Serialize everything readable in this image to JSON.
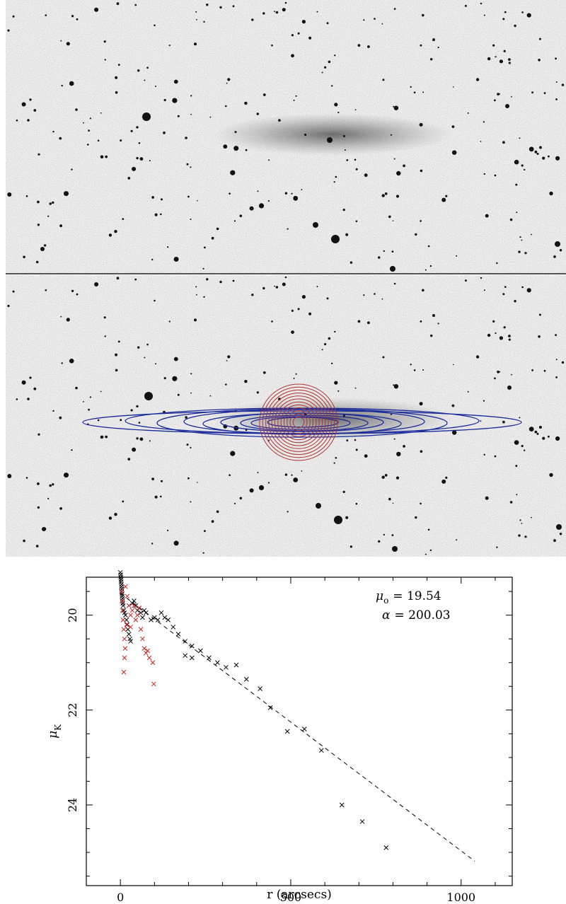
{
  "figure": {
    "panels": [
      "galaxy-image",
      "galaxy-image-with-isophote-ellipses",
      "surface-brightness-profile"
    ]
  },
  "chart_data": {
    "type": "scatter",
    "xlabel": "r (arcsecs)",
    "ylabel_symbol": "μ",
    "ylabel_subscript": "K",
    "xlim": [
      -100,
      1150
    ],
    "ylim": [
      19.2,
      25.7
    ],
    "y_inverted": true,
    "xticks": [
      0,
      500,
      1000
    ],
    "yticks": [
      20,
      22,
      24
    ],
    "grid": false,
    "annotations": {
      "mu0_symbol": "μ",
      "mu0_subscript": "o",
      "mu0_text": "= 19.54",
      "alpha_symbol": "α",
      "alpha_text": "= 200.03"
    },
    "fit": {
      "style": "dashed",
      "mu0": 19.54,
      "alpha": 200.03,
      "x_range": [
        0,
        1040
      ]
    },
    "series": [
      {
        "color": "#000000",
        "marker": "x",
        "points": [
          [
            0,
            19.1
          ],
          [
            1,
            19.15
          ],
          [
            1,
            19.2
          ],
          [
            2,
            19.25
          ],
          [
            2,
            19.3
          ],
          [
            3,
            19.35
          ],
          [
            3,
            19.4
          ],
          [
            4,
            19.45
          ],
          [
            4,
            19.5
          ],
          [
            5,
            19.55
          ],
          [
            5,
            19.6
          ],
          [
            6,
            19.65
          ],
          [
            6,
            19.7
          ],
          [
            7,
            19.75
          ],
          [
            8,
            19.8
          ],
          [
            10,
            19.9
          ],
          [
            12,
            19.95
          ],
          [
            15,
            20.0
          ],
          [
            18,
            20.1
          ],
          [
            20,
            20.2
          ],
          [
            22,
            20.3
          ],
          [
            25,
            20.4
          ],
          [
            28,
            20.5
          ],
          [
            30,
            20.55
          ],
          [
            35,
            19.75
          ],
          [
            40,
            19.7
          ],
          [
            45,
            19.8
          ],
          [
            50,
            19.9
          ],
          [
            55,
            19.85
          ],
          [
            60,
            19.95
          ],
          [
            65,
            20.05
          ],
          [
            70,
            19.9
          ],
          [
            75,
            19.95
          ],
          [
            90,
            20.1
          ],
          [
            100,
            20.05
          ],
          [
            110,
            20.1
          ],
          [
            120,
            19.95
          ],
          [
            130,
            20.05
          ],
          [
            140,
            20.1
          ],
          [
            155,
            20.25
          ],
          [
            170,
            20.4
          ],
          [
            190,
            20.55
          ],
          [
            210,
            20.65
          ],
          [
            190,
            20.85
          ],
          [
            210,
            20.9
          ],
          [
            235,
            20.75
          ],
          [
            260,
            20.9
          ],
          [
            285,
            21.0
          ],
          [
            310,
            21.1
          ],
          [
            340,
            21.05
          ],
          [
            370,
            21.35
          ],
          [
            410,
            21.55
          ],
          [
            440,
            21.95
          ],
          [
            490,
            22.45
          ],
          [
            540,
            22.4
          ],
          [
            590,
            22.85
          ],
          [
            650,
            24.0
          ],
          [
            710,
            24.35
          ],
          [
            780,
            24.9
          ]
        ]
      },
      {
        "color": "#cc2222",
        "marker": "x",
        "points": [
          [
            3,
            19.5
          ],
          [
            5,
            19.7
          ],
          [
            6,
            19.9
          ],
          [
            8,
            20.1
          ],
          [
            10,
            20.3
          ],
          [
            12,
            20.5
          ],
          [
            14,
            20.7
          ],
          [
            12,
            20.9
          ],
          [
            10,
            21.2
          ],
          [
            15,
            19.4
          ],
          [
            20,
            19.6
          ],
          [
            25,
            19.8
          ],
          [
            30,
            20.0
          ],
          [
            35,
            19.9
          ],
          [
            40,
            19.8
          ],
          [
            45,
            20.1
          ],
          [
            50,
            20.0
          ],
          [
            55,
            19.85
          ],
          [
            60,
            20.3
          ],
          [
            65,
            20.5
          ],
          [
            70,
            20.7
          ],
          [
            75,
            20.8
          ],
          [
            80,
            20.75
          ],
          [
            85,
            20.9
          ],
          [
            95,
            21.0
          ],
          [
            98,
            21.45
          ],
          [
            30,
            20.25
          ],
          [
            18,
            20.2
          ]
        ]
      }
    ]
  }
}
